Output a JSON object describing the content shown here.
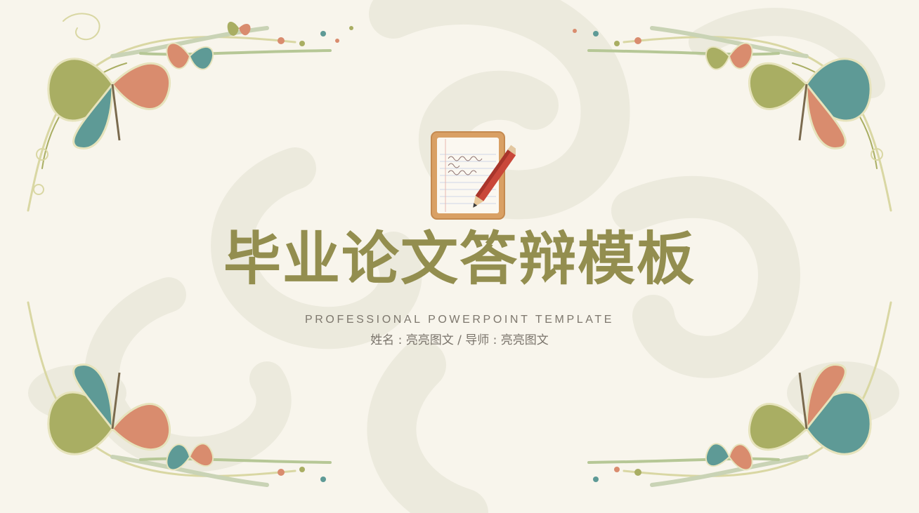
{
  "slide": {
    "title": "毕业论文答辩模板",
    "subtitle": "PROFESSIONAL POWERPOINT TEMPLATE",
    "author_line": "姓名 : 亮亮图文 / 导师 : 亮亮图文"
  },
  "icons": {
    "center": "notepad-pencil-icon",
    "decoration": "butterfly-floral-border"
  },
  "colors": {
    "background": "#f8f5ec",
    "title": "#938e4f",
    "text": "#7a746b",
    "swirl": "#eceadd",
    "butterfly_teal": "#5e9a96",
    "butterfly_olive": "#a9ae63",
    "butterfly_coral": "#d98c6e"
  }
}
